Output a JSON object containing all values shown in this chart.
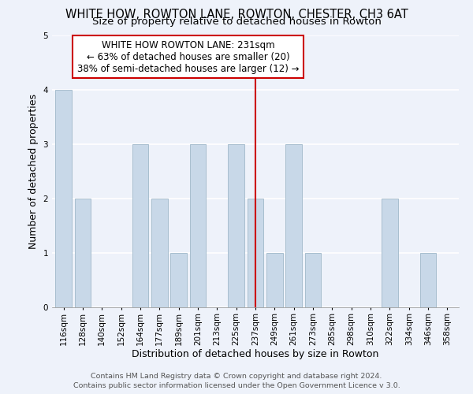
{
  "title": "WHITE HOW, ROWTON LANE, ROWTON, CHESTER, CH3 6AT",
  "subtitle": "Size of property relative to detached houses in Rowton",
  "xlabel": "Distribution of detached houses by size in Rowton",
  "ylabel": "Number of detached properties",
  "footer_line1": "Contains HM Land Registry data © Crown copyright and database right 2024.",
  "footer_line2": "Contains public sector information licensed under the Open Government Licence v 3.0.",
  "bar_labels": [
    "116sqm",
    "128sqm",
    "140sqm",
    "152sqm",
    "164sqm",
    "177sqm",
    "189sqm",
    "201sqm",
    "213sqm",
    "225sqm",
    "237sqm",
    "249sqm",
    "261sqm",
    "273sqm",
    "285sqm",
    "298sqm",
    "310sqm",
    "322sqm",
    "334sqm",
    "346sqm",
    "358sqm"
  ],
  "bar_values": [
    4,
    2,
    0,
    0,
    3,
    2,
    1,
    3,
    0,
    3,
    2,
    1,
    3,
    1,
    0,
    0,
    0,
    2,
    0,
    1,
    0
  ],
  "bar_color": "#c8d8e8",
  "bar_edge_color": "#a8bece",
  "subject_bar_index": 10,
  "subject_line_color": "#cc0000",
  "ylim": [
    0,
    5
  ],
  "yticks": [
    0,
    1,
    2,
    3,
    4,
    5
  ],
  "annotation_text_line1": "WHITE HOW ROWTON LANE: 231sqm",
  "annotation_text_line2": "← 63% of detached houses are smaller (20)",
  "annotation_text_line3": "38% of semi-detached houses are larger (12) →",
  "annotation_box_color": "#ffffff",
  "annotation_border_color": "#cc0000",
  "background_color": "#eef2fa",
  "grid_color": "#ffffff",
  "title_fontsize": 10.5,
  "subtitle_fontsize": 9.5,
  "axis_label_fontsize": 9,
  "tick_fontsize": 7.5,
  "annotation_fontsize": 8.5,
  "footer_fontsize": 6.8
}
